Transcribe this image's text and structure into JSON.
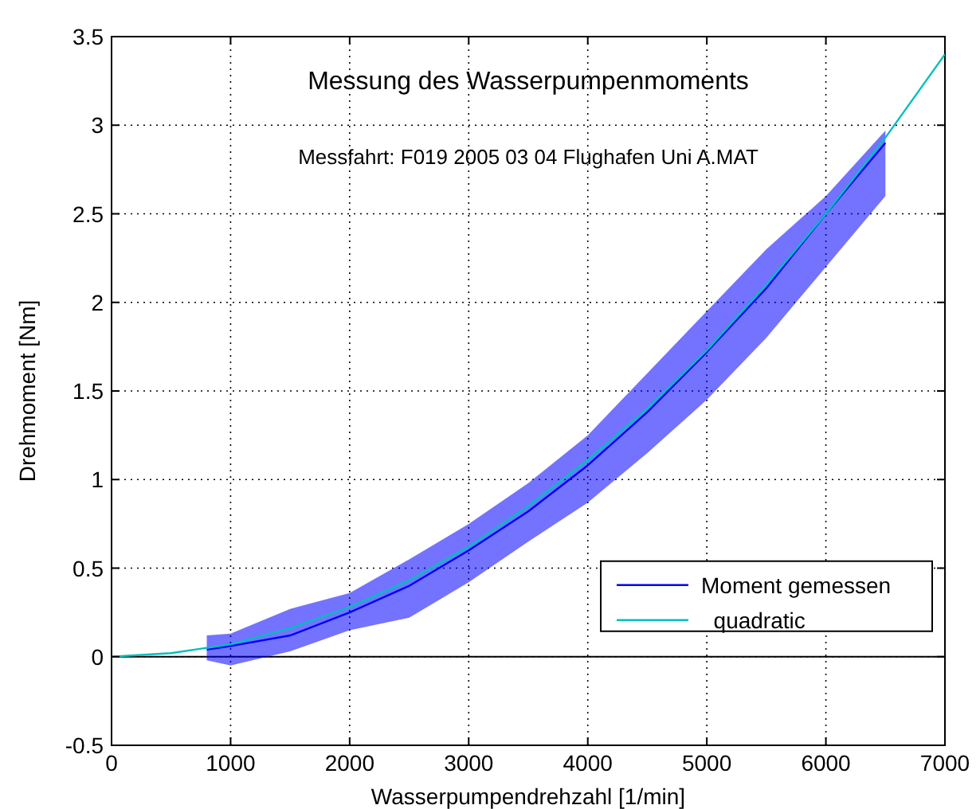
{
  "chart_data": {
    "type": "line",
    "title": "Messung des Wasserpumpenmoments",
    "subtitle": "Messfahrt:  F019 2005 03 04 Flughafen Uni A.MAT",
    "xlabel": "Wasserpumpendrehzahl [1/min]",
    "ylabel": "Drehmoment [Nm]",
    "xlim": [
      0,
      7000
    ],
    "xticks": [
      0,
      1000,
      2000,
      3000,
      4000,
      5000,
      6000,
      7000
    ],
    "ylim": [
      -0.5,
      3.5
    ],
    "yticks": [
      -0.5,
      0,
      0.5,
      1,
      1.5,
      2,
      2.5,
      3,
      3.5
    ],
    "grid": true,
    "legend": "bottom right",
    "line_style": "solid",
    "marker": "none",
    "ref_lines": [
      {
        "axis": "y",
        "value": 0,
        "color": "#000000"
      }
    ],
    "series": [
      {
        "name": "Moment gemessen",
        "color": "#0000ff",
        "x": [
          800,
          1000,
          1500,
          2000,
          2500,
          3000,
          3500,
          4000,
          4500,
          5000,
          5500,
          6000,
          6500
        ],
        "values": [
          0.04,
          0.06,
          0.12,
          0.25,
          0.4,
          0.6,
          0.82,
          1.08,
          1.38,
          1.72,
          2.08,
          2.5,
          2.9
        ],
        "lower": [
          -0.02,
          -0.05,
          0.03,
          0.15,
          0.22,
          0.42,
          0.65,
          0.87,
          1.15,
          1.45,
          1.8,
          2.2,
          2.6
        ],
        "upper": [
          0.12,
          0.13,
          0.27,
          0.36,
          0.55,
          0.75,
          0.98,
          1.25,
          1.6,
          1.95,
          2.3,
          2.6,
          2.97
        ]
      },
      {
        "name": "  quadratic",
        "color": "#00bfbf",
        "x": [
          0,
          500,
          1000,
          1500,
          2000,
          2500,
          3000,
          3500,
          4000,
          4500,
          5000,
          5500,
          6000,
          6500,
          7000
        ],
        "values": [
          0,
          0.02,
          0.07,
          0.16,
          0.28,
          0.43,
          0.62,
          0.85,
          1.11,
          1.4,
          1.73,
          2.1,
          2.5,
          2.93,
          3.4
        ]
      }
    ]
  }
}
